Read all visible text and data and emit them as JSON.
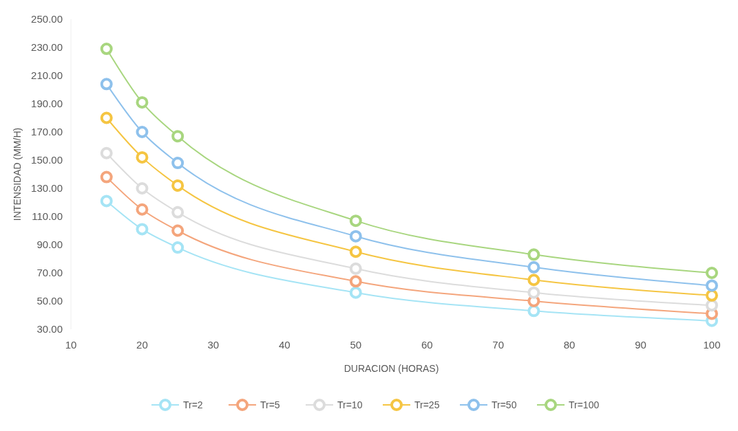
{
  "chart_data": {
    "type": "line",
    "xlabel": "DURACION (HORAS)",
    "ylabel": "INTENSIDAD (MM/H)",
    "x": [
      15,
      20,
      25,
      50,
      75,
      100
    ],
    "xlim": [
      10,
      100
    ],
    "xticks": [
      10,
      20,
      30,
      40,
      50,
      60,
      70,
      80,
      90,
      100
    ],
    "ylim": [
      30,
      250
    ],
    "yticks": [
      {
        "value": 30,
        "label": "30.00"
      },
      {
        "value": 50,
        "label": "50.00"
      },
      {
        "value": 70,
        "label": "70.00"
      },
      {
        "value": 90,
        "label": "90.00"
      },
      {
        "value": 110,
        "label": "110.00"
      },
      {
        "value": 130,
        "label": "130.00"
      },
      {
        "value": 150,
        "label": "150.00"
      },
      {
        "value": 170,
        "label": "170.00"
      },
      {
        "value": 190,
        "label": "190.00"
      },
      {
        "value": 210,
        "label": "210.00"
      },
      {
        "value": 230,
        "label": "230.00"
      },
      {
        "value": 250,
        "label": "250.00"
      }
    ],
    "marker": "circle",
    "legend": "bottom",
    "series": [
      {
        "name": "Tr=2",
        "color": "#a5e4f5",
        "values": [
          121,
          101,
          88,
          56,
          43,
          36
        ]
      },
      {
        "name": "Tr=5",
        "color": "#f4a57c",
        "values": [
          138,
          115,
          100,
          64,
          50,
          41
        ]
      },
      {
        "name": "Tr=10",
        "color": "#dcdcdc",
        "values": [
          155,
          130,
          113,
          73,
          56,
          47
        ]
      },
      {
        "name": "Tr=25",
        "color": "#f5c542",
        "values": [
          180,
          152,
          132,
          85,
          65,
          54
        ]
      },
      {
        "name": "Tr=50",
        "color": "#8ec1ec",
        "values": [
          204,
          170,
          148,
          96,
          74,
          61
        ]
      },
      {
        "name": "Tr=100",
        "color": "#a8d67f",
        "values": [
          229,
          191,
          167,
          107,
          83,
          70
        ]
      }
    ]
  }
}
